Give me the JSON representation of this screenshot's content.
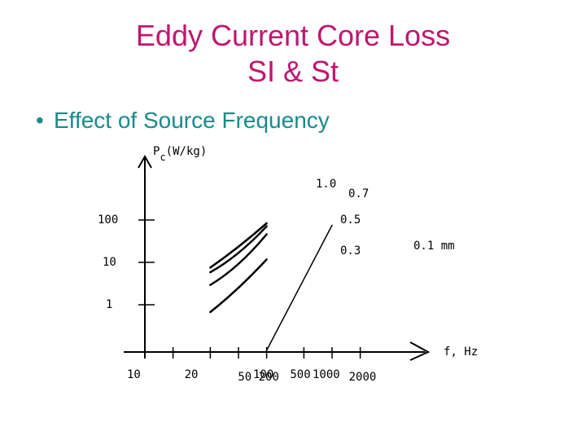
{
  "slide": {
    "title_line1": "Eddy Current Core Loss",
    "title_line2": "SI & St",
    "bullet": "Effect of Source Frequency",
    "bullet_symbol": "•",
    "title_color": "#c0166e",
    "bullet_color": "#1a8a8a"
  },
  "chart_data": {
    "type": "line",
    "ylabel_main": "P",
    "ylabel_sub": "c",
    "ylabel_unit": "(W/kg)",
    "xlabel": "f, Hz",
    "x_scale": "log",
    "y_scale": "log",
    "x_ticks": [
      "10",
      "20",
      "50",
      "100",
      "200",
      "500",
      "1000",
      "2000"
    ],
    "y_ticks": [
      "1",
      "10",
      "100"
    ],
    "series": [
      {
        "name": "1.0",
        "x": [
          50,
          100,
          200
        ],
        "y": [
          9,
          28,
          100
        ]
      },
      {
        "name": "0.7",
        "x": [
          50,
          100,
          200
        ],
        "y": [
          7,
          20,
          85
        ]
      },
      {
        "name": "0.5",
        "x": [
          50,
          100,
          200
        ],
        "y": [
          3.5,
          11,
          55
        ]
      },
      {
        "name": "0.3",
        "x": [
          50,
          100,
          200
        ],
        "y": [
          0.8,
          3,
          14
        ]
      },
      {
        "name": "0.1 mm",
        "x": [
          200,
          1000
        ],
        "y": [
          0.1,
          90
        ]
      }
    ],
    "grid": false,
    "legend": "none"
  }
}
